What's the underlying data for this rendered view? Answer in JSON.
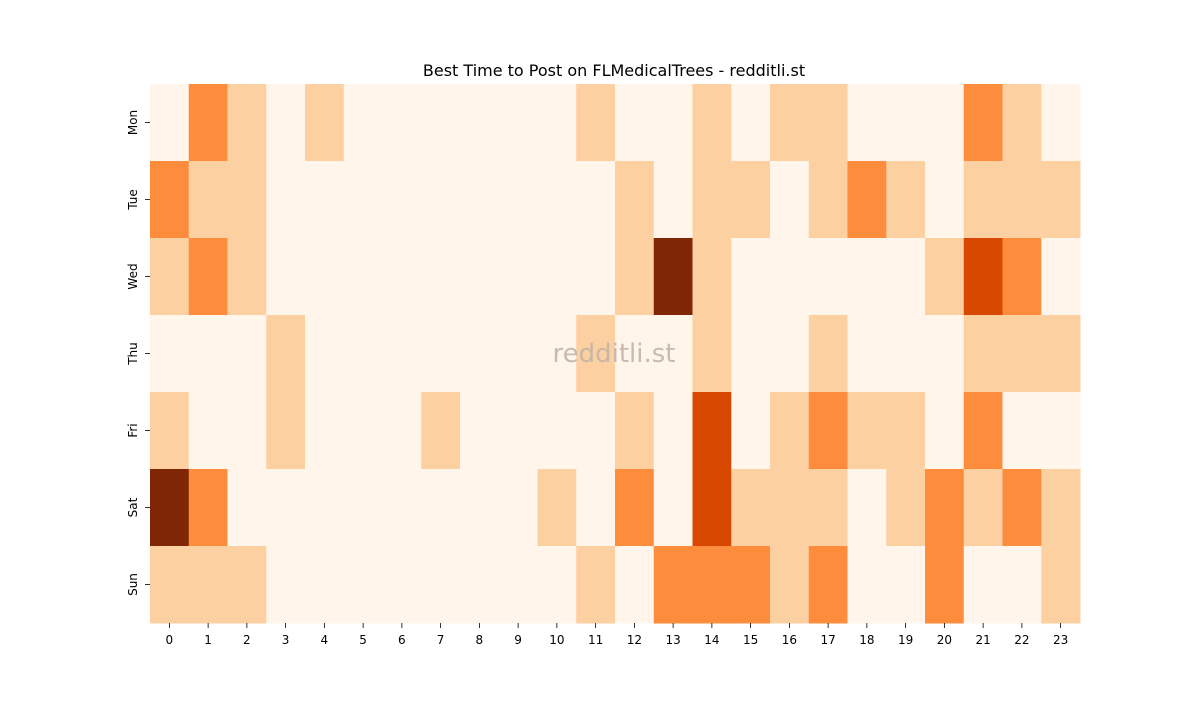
{
  "chart_data": {
    "type": "heatmap",
    "title": "Best Time to Post on FLMedicalTrees - redditli.st",
    "watermark": "redditli.st",
    "xlabel": "",
    "ylabel": "",
    "x_categories": [
      "0",
      "1",
      "2",
      "3",
      "4",
      "5",
      "6",
      "7",
      "8",
      "9",
      "10",
      "11",
      "12",
      "13",
      "14",
      "15",
      "16",
      "17",
      "18",
      "19",
      "20",
      "21",
      "22",
      "23"
    ],
    "y_categories": [
      "Mon",
      "Tue",
      "Wed",
      "Thu",
      "Fri",
      "Sat",
      "Sun"
    ],
    "colormap": "Oranges",
    "value_range": [
      0,
      4
    ],
    "colorbar": false,
    "grid": false,
    "values": [
      [
        0,
        2,
        1,
        0,
        1,
        0,
        0,
        0,
        0,
        0,
        0,
        1,
        0,
        0,
        1,
        0,
        1,
        1,
        0,
        0,
        0,
        2,
        1,
        0
      ],
      [
        2,
        1,
        1,
        0,
        0,
        0,
        0,
        0,
        0,
        0,
        0,
        0,
        1,
        0,
        1,
        1,
        0,
        1,
        2,
        1,
        0,
        1,
        1,
        1
      ],
      [
        1,
        2,
        1,
        0,
        0,
        0,
        0,
        0,
        0,
        0,
        0,
        0,
        1,
        4,
        1,
        0,
        0,
        0,
        0,
        0,
        1,
        3,
        2,
        0
      ],
      [
        0,
        0,
        0,
        1,
        0,
        0,
        0,
        0,
        0,
        0,
        0,
        1,
        0,
        0,
        1,
        0,
        0,
        1,
        0,
        0,
        0,
        1,
        1,
        1
      ],
      [
        1,
        0,
        0,
        1,
        0,
        0,
        0,
        1,
        0,
        0,
        0,
        0,
        1,
        0,
        3,
        0,
        1,
        2,
        1,
        1,
        0,
        2,
        0,
        0
      ],
      [
        4,
        2,
        0,
        0,
        0,
        0,
        0,
        0,
        0,
        0,
        1,
        0,
        2,
        0,
        3,
        1,
        1,
        1,
        0,
        1,
        2,
        1,
        2,
        1
      ],
      [
        1,
        1,
        1,
        0,
        0,
        0,
        0,
        0,
        0,
        0,
        0,
        1,
        0,
        2,
        2,
        2,
        1,
        2,
        0,
        0,
        2,
        0,
        0,
        1
      ]
    ]
  },
  "palette": [
    "#fff5eb",
    "#fdd0a2",
    "#fd8d3c",
    "#d94801",
    "#7f2704"
  ],
  "watermark_color": "#c2b4a8"
}
